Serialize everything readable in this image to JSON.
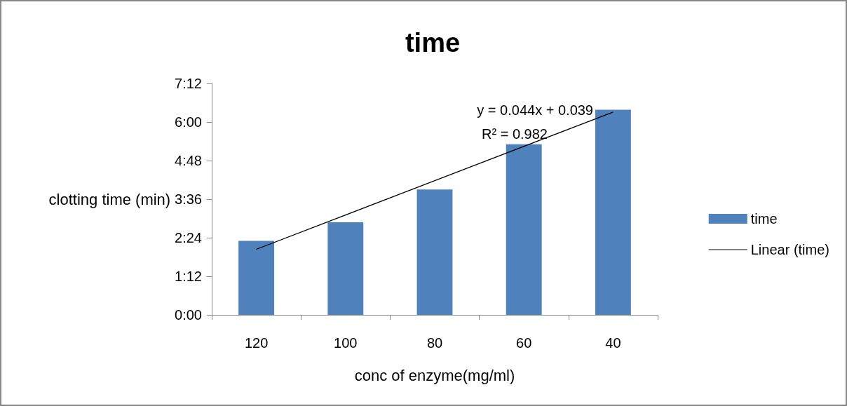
{
  "chart_data": {
    "type": "bar",
    "title": "time",
    "xlabel": "conc of enzyme(mg/ml)",
    "ylabel": "clotting time (min)",
    "categories": [
      "120",
      "100",
      "80",
      "60",
      "40"
    ],
    "series": [
      {
        "name": "time",
        "color": "#4f81bd",
        "values": [
          2.3,
          2.88,
          3.9,
          5.31,
          6.38
        ]
      },
      {
        "name": "Linear (time)",
        "type": "line",
        "color": "#000000",
        "x": [
          "120",
          "40"
        ],
        "values": [
          2.04,
          6.31
        ]
      }
    ],
    "ylim": [
      0,
      7.2
    ],
    "yticks": [
      {
        "value": 0,
        "label": "0:00"
      },
      {
        "value": 1.2,
        "label": "1:12"
      },
      {
        "value": 2.4,
        "label": "2:24"
      },
      {
        "value": 3.6,
        "label": "3:36"
      },
      {
        "value": 4.8,
        "label": "4:48"
      },
      {
        "value": 6,
        "label": "6:00"
      },
      {
        "value": 7.2,
        "label": "7:12"
      }
    ],
    "annotations": [
      "y = 0.044x + 0.039",
      "R² = 0.982"
    ],
    "grid": false,
    "legend": "right",
    "marker": "none",
    "line_style": "solid"
  }
}
